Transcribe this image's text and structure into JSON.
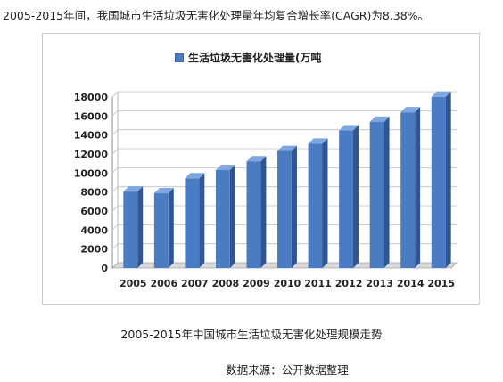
{
  "intro_text": "2005-2015年间，我国城市生活垃圾无害化处理量年均复合增长率(CAGR)为8.38%。",
  "caption": "2005-2015年中国城市生活垃圾无害化处理规模走势",
  "source": "数据来源：公开数据整理",
  "colors": {
    "bar": "#4a7cc4",
    "bar_dark": "#2f5592",
    "bar_top": "#7ea6e0",
    "grid": "#bfbfbf"
  },
  "chart_data": {
    "type": "bar",
    "title": "",
    "xlabel": "",
    "ylabel": "",
    "ylim": [
      0,
      18000
    ],
    "yticks": [
      0,
      2000,
      4000,
      6000,
      8000,
      10000,
      12000,
      14000,
      16000,
      18000
    ],
    "grid": true,
    "legend": "top",
    "categories": [
      "2005",
      "2006",
      "2007",
      "2008",
      "2009",
      "2010",
      "2011",
      "2012",
      "2013",
      "2014",
      "2015"
    ],
    "series": [
      {
        "name": "生活垃圾无害化处理量(万吨",
        "values": [
          8050,
          7870,
          9440,
          10310,
          11230,
          12320,
          13090,
          14480,
          15390,
          16390,
          18010
        ]
      }
    ]
  }
}
